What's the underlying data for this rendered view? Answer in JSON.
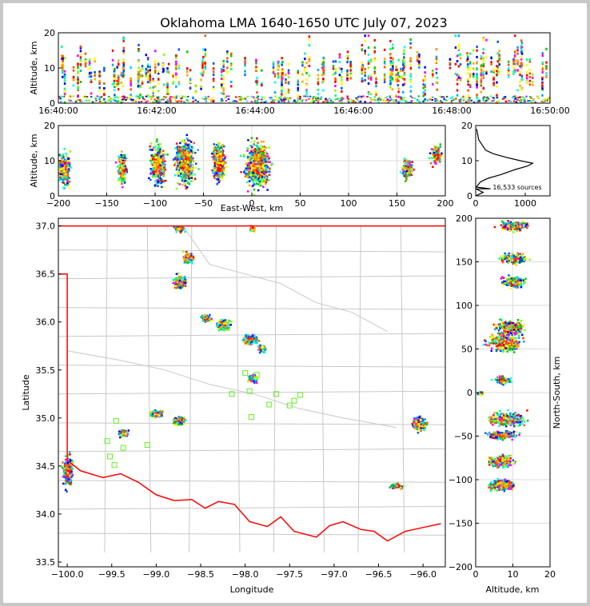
{
  "chart_data": [
    {
      "type": "scatter",
      "panel": "altitude-time",
      "title": "Oklahoma LMA 1640-1650 UTC July 07, 2023",
      "xlabel": "",
      "ylabel": "Altitude, km",
      "x_ticks": [
        "16:40:00",
        "16:42:00",
        "16:44:00",
        "16:46:00",
        "16:48:00",
        "16:50:00"
      ],
      "y_ticks": [
        "0",
        "10",
        "20"
      ],
      "xlim": [
        "16:40:00",
        "16:50:00"
      ],
      "ylim": [
        0,
        20
      ],
      "grid": false,
      "color_scale": "time (blue to red)"
    },
    {
      "type": "scatter",
      "panel": "east-west-altitude",
      "xlabel": "East-West, km",
      "ylabel": "Altitude, km",
      "x_ticks": [
        "−200",
        "−150",
        "−100",
        "−50",
        "0",
        "50",
        "100",
        "150",
        "200"
      ],
      "y_ticks": [
        "0",
        "10",
        "20"
      ],
      "xlim": [
        -200,
        200
      ],
      "ylim": [
        0,
        20
      ],
      "grid": true,
      "clusters": [
        {
          "x": -195,
          "y": 8,
          "w": 12,
          "h": 10
        },
        {
          "x": -135,
          "y": 8,
          "w": 8,
          "h": 10
        },
        {
          "x": -98,
          "y": 9,
          "w": 14,
          "h": 12
        },
        {
          "x": -70,
          "y": 10,
          "w": 18,
          "h": 14
        },
        {
          "x": -35,
          "y": 10,
          "w": 12,
          "h": 12
        },
        {
          "x": 5,
          "y": 9,
          "w": 22,
          "h": 14
        },
        {
          "x": 160,
          "y": 8,
          "w": 10,
          "h": 6
        },
        {
          "x": 190,
          "y": 12,
          "w": 10,
          "h": 6
        }
      ]
    },
    {
      "type": "line",
      "panel": "altitude-histogram",
      "annotation": "16,533 sources",
      "x_ticks": [
        "0",
        "1000"
      ],
      "y_ticks": [
        "0",
        "10",
        "20"
      ],
      "xlim": [
        0,
        1500
      ],
      "ylim": [
        0,
        20
      ],
      "series": [
        {
          "x": [
            0,
            5,
            15,
            40,
            100,
            250,
            500,
            800,
            1050,
            1150,
            900,
            600,
            350,
            200,
            300,
            150,
            60,
            20
          ],
          "y": [
            0,
            2,
            2.5,
            3,
            4,
            5,
            6,
            7.5,
            8.5,
            9.3,
            10,
            11,
            12,
            13,
            2,
            1,
            16,
            19
          ]
        }
      ]
    },
    {
      "type": "scatter",
      "panel": "plan-view-map",
      "xlabel": "Longitude",
      "ylabel": "Latitude",
      "x_ticks": [
        "−100.0",
        "−99.5",
        "−99.0",
        "−98.5",
        "−98.0",
        "−97.5",
        "−97.0",
        "−96.5",
        "−96.0"
      ],
      "y_ticks": [
        "33.5",
        "34.0",
        "34.5",
        "35.0",
        "35.5",
        "36.0",
        "36.5",
        "37.0"
      ],
      "xlim": [
        -100.1,
        -95.75
      ],
      "ylim": [
        33.45,
        37.08
      ],
      "grid": false,
      "clusters": [
        {
          "lon": -98.75,
          "lat": 36.98,
          "w": 0.08,
          "h": 0.05
        },
        {
          "lon": -97.93,
          "lat": 36.98,
          "w": 0.04,
          "h": 0.04
        },
        {
          "lon": -98.65,
          "lat": 36.68,
          "w": 0.08,
          "h": 0.08
        },
        {
          "lon": -98.75,
          "lat": 36.42,
          "w": 0.1,
          "h": 0.1
        },
        {
          "lon": -98.45,
          "lat": 36.05,
          "w": 0.08,
          "h": 0.05
        },
        {
          "lon": -98.25,
          "lat": 35.98,
          "w": 0.1,
          "h": 0.08
        },
        {
          "lon": -97.95,
          "lat": 35.83,
          "w": 0.12,
          "h": 0.07
        },
        {
          "lon": -97.82,
          "lat": 35.73,
          "w": 0.06,
          "h": 0.06
        },
        {
          "lon": -97.92,
          "lat": 35.42,
          "w": 0.08,
          "h": 0.06
        },
        {
          "lon": -99.0,
          "lat": 35.05,
          "w": 0.12,
          "h": 0.05
        },
        {
          "lon": -98.75,
          "lat": 34.98,
          "w": 0.1,
          "h": 0.06
        },
        {
          "lon": -99.38,
          "lat": 34.85,
          "w": 0.08,
          "h": 0.06
        },
        {
          "lon": -100.0,
          "lat": 34.45,
          "w": 0.08,
          "h": 0.22
        },
        {
          "lon": -96.05,
          "lat": 34.95,
          "w": 0.1,
          "h": 0.1
        },
        {
          "lon": -96.3,
          "lat": 34.3,
          "w": 0.1,
          "h": 0.04
        }
      ],
      "stations": [
        {
          "lon": -99.45,
          "lat": 34.97
        },
        {
          "lon": -99.55,
          "lat": 34.76
        },
        {
          "lon": -99.52,
          "lat": 34.6
        },
        {
          "lon": -99.47,
          "lat": 34.51
        },
        {
          "lon": -99.37,
          "lat": 34.69
        },
        {
          "lon": -99.1,
          "lat": 34.72
        },
        {
          "lon": -98.0,
          "lat": 35.47
        },
        {
          "lon": -97.87,
          "lat": 35.45
        },
        {
          "lon": -97.95,
          "lat": 35.28
        },
        {
          "lon": -97.65,
          "lat": 35.25
        },
        {
          "lon": -98.15,
          "lat": 35.25
        },
        {
          "lon": -97.73,
          "lat": 35.14
        },
        {
          "lon": -97.93,
          "lat": 35.01
        },
        {
          "lon": -97.5,
          "lat": 35.13
        },
        {
          "lon": -97.45,
          "lat": 35.18
        },
        {
          "lon": -97.38,
          "lat": 35.24
        }
      ]
    },
    {
      "type": "scatter",
      "panel": "altitude-north-south",
      "xlabel": "Altitude, km",
      "ylabel": "North-South, km",
      "x_ticks": [
        "0",
        "10",
        "20"
      ],
      "y_ticks": [
        "−200",
        "−150",
        "−100",
        "−50",
        "0",
        "50",
        "100",
        "150",
        "200"
      ],
      "xlim": [
        0,
        20
      ],
      "ylim": [
        -200,
        200
      ],
      "grid": true,
      "clusters": [
        {
          "x": 10,
          "y": 192,
          "w": 8,
          "h": 10
        },
        {
          "x": 10,
          "y": 155,
          "w": 8,
          "h": 10
        },
        {
          "x": 10,
          "y": 128,
          "w": 7,
          "h": 12
        },
        {
          "x": 9,
          "y": 75,
          "w": 8,
          "h": 14
        },
        {
          "x": 8,
          "y": 58,
          "w": 10,
          "h": 18
        },
        {
          "x": 7,
          "y": 15,
          "w": 5,
          "h": 8
        },
        {
          "x": 1,
          "y": 0,
          "w": 2,
          "h": 4
        },
        {
          "x": 8,
          "y": -30,
          "w": 10,
          "h": 14
        },
        {
          "x": 7,
          "y": -48,
          "w": 9,
          "h": 8
        },
        {
          "x": 7,
          "y": -78,
          "w": 8,
          "h": 12
        },
        {
          "x": 7,
          "y": -105,
          "w": 8,
          "h": 12
        }
      ]
    }
  ]
}
